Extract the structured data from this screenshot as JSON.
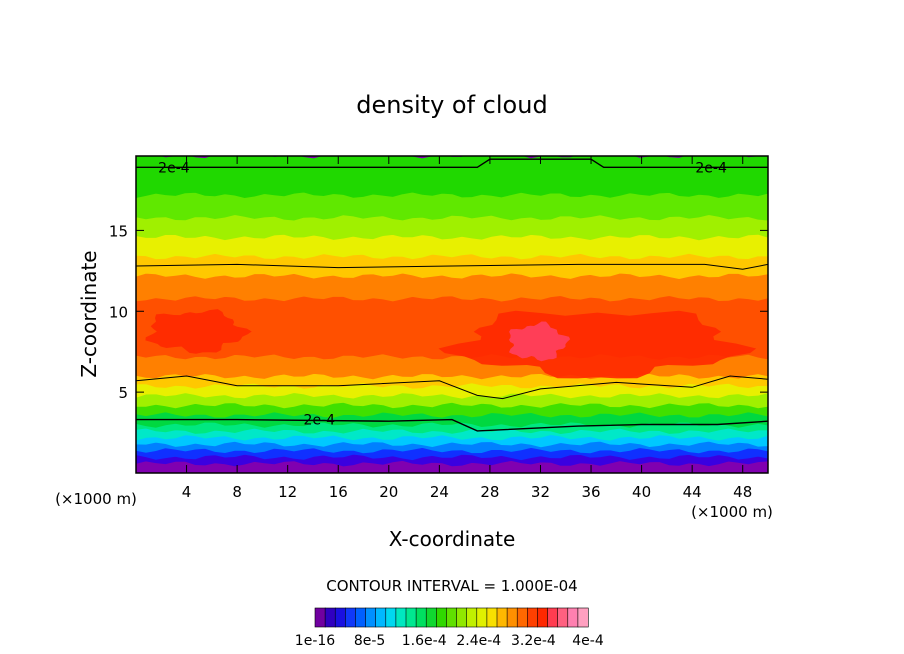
{
  "chart_data": {
    "type": "heatmap",
    "title": "density of cloud",
    "xlabel": "X-coordinate",
    "ylabel": "Z-coordinate",
    "x_unit": "(×1000 m)",
    "x_unit_right": "(×1000 m)",
    "xlim": [
      0,
      50
    ],
    "ylim": [
      0,
      19.6
    ],
    "x_ticks": [
      4,
      8,
      12,
      16,
      20,
      24,
      28,
      32,
      36,
      40,
      44,
      48
    ],
    "x_tick_labels": [
      "4",
      "8",
      "12",
      "16",
      "20",
      "24",
      "28",
      "32",
      "36",
      "40",
      "44",
      "48"
    ],
    "y_ticks": [
      5,
      10,
      15
    ],
    "y_tick_labels": [
      "5",
      "10",
      "15"
    ],
    "contour_interval_text": "CONTOUR INTERVAL = 1.000E-04",
    "contour_labels": [
      {
        "text": "2e-4",
        "x": 3,
        "z": 18.9
      },
      {
        "text": "2e-4",
        "x": 45.5,
        "z": 18.9
      },
      {
        "text": "2e-4",
        "x": 14.5,
        "z": 3.3
      }
    ],
    "layers": [
      {
        "z_bottom": 0.0,
        "z_top": 0.6,
        "color": "#8000b0"
      },
      {
        "z_bottom": 0.6,
        "z_top": 1.0,
        "color": "#3a00e0"
      },
      {
        "z_bottom": 1.0,
        "z_top": 1.4,
        "color": "#1030ff"
      },
      {
        "z_bottom": 1.4,
        "z_top": 1.8,
        "color": "#0080ff"
      },
      {
        "z_bottom": 1.8,
        "z_top": 2.2,
        "color": "#00c8ff"
      },
      {
        "z_bottom": 2.2,
        "z_top": 2.6,
        "color": "#00e8c8"
      },
      {
        "z_bottom": 2.6,
        "z_top": 3.0,
        "color": "#00e880"
      },
      {
        "z_bottom": 3.0,
        "z_top": 3.6,
        "color": "#00d840"
      },
      {
        "z_bottom": 3.6,
        "z_top": 4.2,
        "color": "#40e000"
      },
      {
        "z_bottom": 4.2,
        "z_top": 4.8,
        "color": "#a0f000"
      },
      {
        "z_bottom": 4.8,
        "z_top": 5.4,
        "color": "#e8f000"
      },
      {
        "z_bottom": 5.4,
        "z_top": 6.0,
        "color": "#ffc800"
      },
      {
        "z_bottom": 6.0,
        "z_top": 7.2,
        "color": "#ff8000"
      },
      {
        "z_bottom": 7.2,
        "z_top": 10.8,
        "color": "#ff5000"
      },
      {
        "z_bottom": 10.8,
        "z_top": 12.2,
        "color": "#ff8000"
      },
      {
        "z_bottom": 12.2,
        "z_top": 13.4,
        "color": "#ffc800"
      },
      {
        "z_bottom": 13.4,
        "z_top": 14.6,
        "color": "#e8f000"
      },
      {
        "z_bottom": 14.6,
        "z_top": 15.8,
        "color": "#a0f000"
      },
      {
        "z_bottom": 15.8,
        "z_top": 17.2,
        "color": "#60e800"
      },
      {
        "z_bottom": 17.2,
        "z_top": 19.6,
        "color": "#20d800"
      }
    ],
    "high_core_regions": [
      {
        "x0": 25.5,
        "x1": 47.5,
        "z0": 6.0,
        "z1": 10.0,
        "color": "#ff2800"
      },
      {
        "x0": 1.0,
        "x1": 8.5,
        "z0": 7.5,
        "z1": 10.0,
        "color": "#ff2800"
      },
      {
        "x0": 29.5,
        "x1": 34.0,
        "z0": 7.0,
        "z1": 9.2,
        "color": "#ff4060"
      }
    ],
    "contour_lines": [
      {
        "value": "2e-4",
        "points": [
          [
            0,
            18.9
          ],
          [
            27,
            18.9
          ],
          [
            28,
            19.4
          ],
          [
            36,
            19.4
          ],
          [
            37,
            18.9
          ],
          [
            50,
            18.9
          ]
        ]
      },
      {
        "value": "",
        "points": [
          [
            0,
            12.8
          ],
          [
            8,
            12.9
          ],
          [
            16,
            12.7
          ],
          [
            25,
            12.8
          ],
          [
            35,
            12.9
          ],
          [
            45,
            12.9
          ],
          [
            48,
            12.6
          ],
          [
            50,
            12.9
          ]
        ]
      },
      {
        "value": "",
        "points": [
          [
            0,
            5.7
          ],
          [
            4,
            6.0
          ],
          [
            8,
            5.4
          ],
          [
            16,
            5.4
          ],
          [
            24,
            5.7
          ],
          [
            27,
            4.8
          ],
          [
            29,
            4.6
          ],
          [
            32,
            5.2
          ],
          [
            38,
            5.6
          ],
          [
            44,
            5.3
          ],
          [
            47,
            6.0
          ],
          [
            50,
            5.8
          ]
        ]
      },
      {
        "value": "2e-4",
        "points": [
          [
            0,
            3.3
          ],
          [
            8,
            3.3
          ],
          [
            20,
            3.2
          ],
          [
            25,
            3.3
          ],
          [
            27,
            2.6
          ],
          [
            35,
            2.9
          ],
          [
            40,
            3.0
          ],
          [
            46,
            3.0
          ],
          [
            50,
            3.2
          ]
        ]
      }
    ],
    "colorbar": {
      "colors": [
        "#7000a0",
        "#3000c0",
        "#1a10e0",
        "#1038f8",
        "#0060ff",
        "#0090ff",
        "#00b8ff",
        "#00d8f0",
        "#00e8c0",
        "#00e890",
        "#00e060",
        "#10d830",
        "#30d800",
        "#60e000",
        "#90e800",
        "#c0f000",
        "#e0f000",
        "#f8e000",
        "#ffb800",
        "#ff9000",
        "#ff6800",
        "#ff4000",
        "#ff2800",
        "#ff3c50",
        "#ff6080",
        "#ff80b0",
        "#ffa0c0"
      ],
      "tick_labels": [
        "1e-16",
        "8e-5",
        "1.6e-4",
        "2.4e-4",
        "3.2e-4",
        "4e-4"
      ]
    }
  }
}
